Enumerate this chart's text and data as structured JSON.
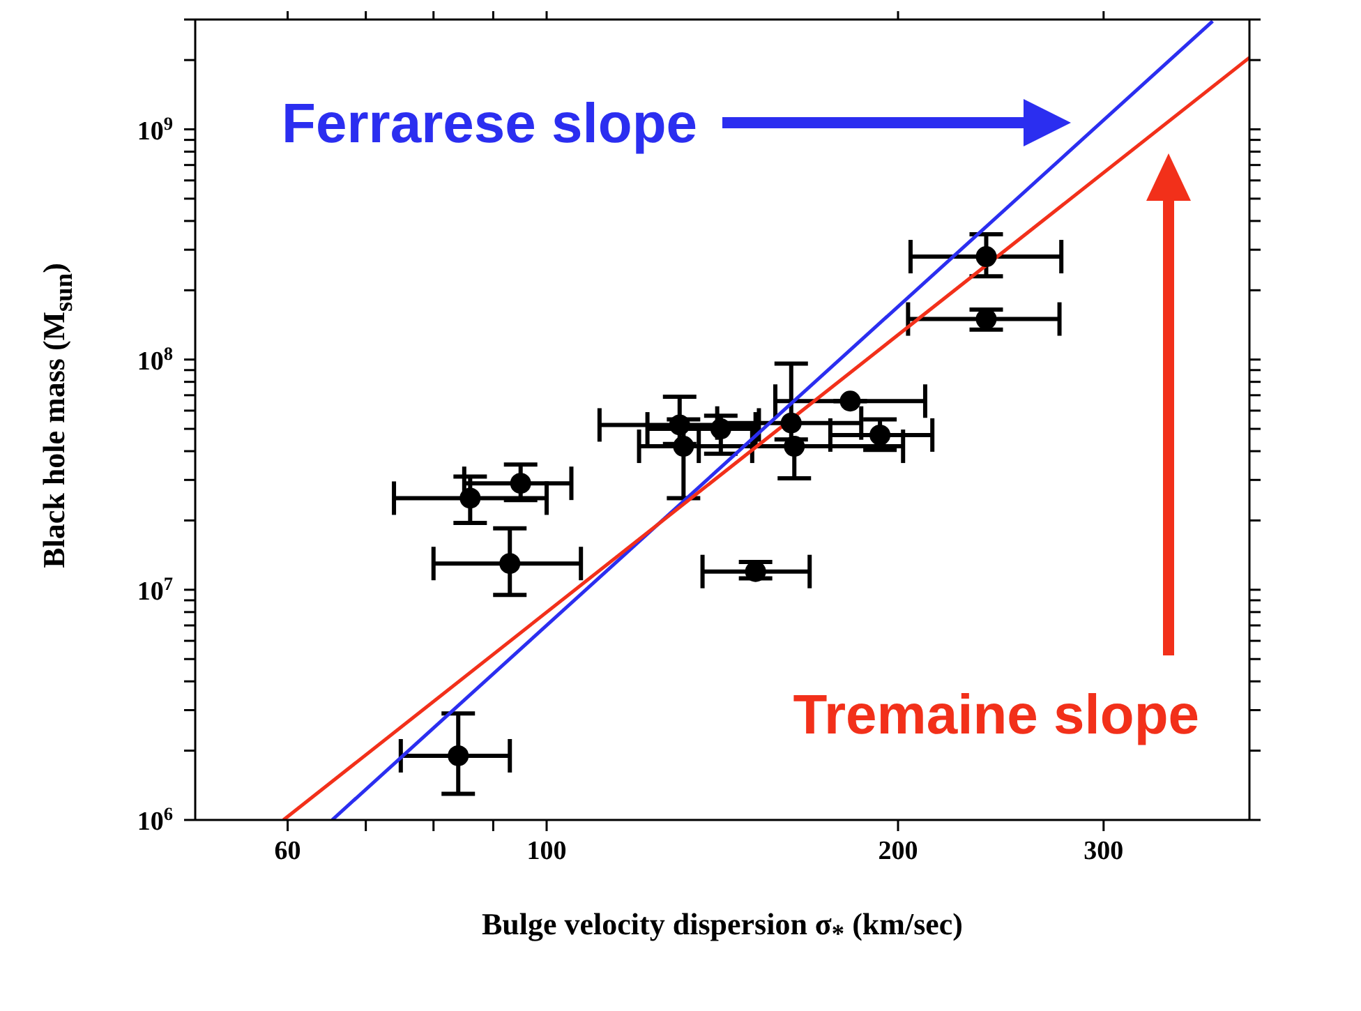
{
  "chart_data": {
    "type": "scatter",
    "xlabel": "Bulge velocity dispersion σ$_{*}$ (km/sec)",
    "ylabel": "Black hole mass (M$_{sun}$)",
    "log": "xy",
    "xlim": [
      50,
      400
    ],
    "ylim": [
      1000000,
      3000000000
    ],
    "xticks": [
      60,
      {
        "value": 70,
        "label": null
      },
      {
        "value": 80,
        "label": null
      },
      {
        "value": 90,
        "label": null
      },
      100,
      200,
      300
    ],
    "yticks": [
      {
        "value": 1000000,
        "label": "10$^{6}$"
      },
      {
        "value": 2000000,
        "label": null
      },
      {
        "value": 3000000,
        "label": null
      },
      {
        "value": 4000000,
        "label": null
      },
      {
        "value": 5000000,
        "label": null
      },
      {
        "value": 6000000,
        "label": null
      },
      {
        "value": 7000000,
        "label": null
      },
      {
        "value": 8000000,
        "label": null
      },
      {
        "value": 9000000,
        "label": null
      },
      {
        "value": 10000000,
        "label": "10$^{7}$"
      },
      {
        "value": 20000000,
        "label": null
      },
      {
        "value": 30000000,
        "label": null
      },
      {
        "value": 40000000,
        "label": null
      },
      {
        "value": 50000000,
        "label": null
      },
      {
        "value": 60000000,
        "label": null
      },
      {
        "value": 70000000,
        "label": null
      },
      {
        "value": 80000000,
        "label": null
      },
      {
        "value": 90000000,
        "label": null
      },
      {
        "value": 100000000,
        "label": "10$^{8}$"
      },
      {
        "value": 200000000,
        "label": null
      },
      {
        "value": 300000000,
        "label": null
      },
      {
        "value": 400000000,
        "label": null
      },
      {
        "value": 500000000,
        "label": null
      },
      {
        "value": 600000000,
        "label": null
      },
      {
        "value": 700000000,
        "label": null
      },
      {
        "value": 800000000,
        "label": null
      },
      {
        "value": 900000000,
        "label": null
      },
      {
        "value": 1000000000,
        "label": "10$^{9}$"
      },
      {
        "value": 2000000000,
        "label": null
      },
      {
        "value": 3000000000,
        "label": null
      }
    ],
    "grid": false,
    "legend": false,
    "series": [
      {
        "color": "#000000",
        "marker": "circle",
        "x": [
          84,
          86,
          93,
          95,
          130,
          131,
          141,
          151,
          162,
          163,
          182,
          193,
          238,
          238
        ],
        "values": [
          1900000,
          25000000,
          13000000,
          29000000,
          52000000,
          42000000,
          50000000,
          12000000,
          53000000,
          42000000,
          66000000,
          47000000,
          280000000,
          150000000
        ],
        "xerrors": [
          [
            75,
            93
          ],
          [
            74,
            100
          ],
          [
            80,
            107
          ],
          [
            85,
            105
          ],
          [
            111,
            152
          ],
          [
            120,
            150
          ],
          [
            122,
            151
          ],
          [
            136,
            168
          ],
          [
            140,
            186
          ],
          [
            135,
            202
          ],
          [
            157,
            211
          ],
          [
            175,
            214
          ],
          [
            205,
            276
          ],
          [
            204,
            275
          ]
        ],
        "errors": [
          [
            1300000,
            2900000
          ],
          [
            19500000,
            31000000
          ],
          [
            9500000,
            18500000
          ],
          [
            24500000,
            35000000
          ],
          [
            43000000,
            69000000
          ],
          [
            25000000,
            55000000
          ],
          [
            39000000,
            57000000
          ],
          [
            11200000,
            13200000
          ],
          [
            45000000,
            96000000
          ],
          [
            30500000,
            42000000
          ],
          null,
          [
            40500000,
            55000000
          ],
          [
            230000000,
            350000000
          ],
          [
            135000000,
            165000000
          ]
        ]
      },
      {
        "type": "line",
        "color": "#2b2ef0",
        "marker": "none",
        "x": [
          65.5,
          372
        ],
        "values": [
          1000000,
          2950000000
        ]
      },
      {
        "type": "line",
        "color": "#f2301a",
        "marker": "none",
        "x": [
          59.5,
          400
        ],
        "values": [
          1000000,
          2050000000
        ]
      }
    ],
    "annotations": [
      "Ferrarese slope",
      "Tremaine slope"
    ]
  }
}
